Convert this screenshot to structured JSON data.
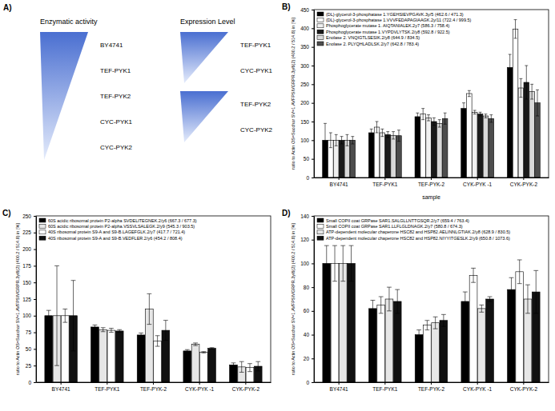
{
  "diagram": {
    "label": "A)",
    "columns": [
      {
        "title": "Enzymatic activity",
        "groups": [
          [
            "BY4741",
            "TEF-PYK1",
            "TEF-PYK2",
            "CYC-PYK1",
            "CYC-PYK2"
          ]
        ]
      },
      {
        "title": "Expression Level",
        "groups": [
          [
            "TEF-PYK1",
            "CYC-PYK1"
          ],
          [
            "TEF-PYK2",
            "CYC-PYK2"
          ]
        ]
      }
    ]
  },
  "chart_data": [
    {
      "type": "bar",
      "title": "B)",
      "x_label": "sample",
      "y_label": "ratio to Actin OS=Sacchar SV=1.AVFPSIVGRPR.3y/6(2) (400.2 / 514.8) in [%]",
      "categories": [
        "BY4741",
        "TEF-PYK1",
        "TEF-PYK-2",
        "CYK-PYK -1",
        "CYK-PYK-2"
      ],
      "series": [
        {
          "name": "(DL)-glycerol-3-phosphatase 1.YGEHSIEVPGAVK.3y/5 (462.6 / 471.3)",
          "color": "#000000",
          "values": [
            100,
            120,
            163,
            185,
            295
          ],
          "errors": [
            45,
            10,
            10,
            15,
            35
          ]
        },
        {
          "name": "(DL)-glycerol-3-phosphatase 1.VVVFEDAPAGIAAGK.2y/11 (722.4 / 999.5)",
          "color": "#ffffff",
          "values": [
            100,
            135,
            170,
            225,
            398
          ],
          "errors": [
            20,
            15,
            15,
            8,
            25
          ]
        },
        {
          "name": "Phosphoglycerate mutase 1. AIQTANIALEK.2y7 (586.3 / 758.4)",
          "color": "#f0f0f0",
          "values": [
            100,
            120,
            160,
            175,
            240
          ],
          "errors": [
            15,
            10,
            8,
            5,
            25
          ]
        },
        {
          "name": "Phosphoglycerate mutase 1.VYPDVLYTSK.2/y8 (592.8 / 922.5)",
          "color": "#1a1a1a",
          "values": [
            100,
            115,
            150,
            170,
            255
          ],
          "errors": [
            10,
            8,
            10,
            5,
            45
          ]
        },
        {
          "name": "Enolase 2. VNQIGTLSESIK.2/y8 (644.9 / 834.5)",
          "color": "#d9d9d9",
          "values": [
            100,
            113,
            145,
            165,
            230
          ],
          "errors": [
            15,
            10,
            10,
            5,
            20
          ]
        },
        {
          "name": "Enolase 2. PLYQHLADLSK.2/y7 (642.8 / 783.4)",
          "color": "#4d4d4d",
          "values": [
            100,
            112,
            158,
            158,
            200
          ],
          "errors": [
            10,
            15,
            15,
            10,
            35
          ]
        }
      ],
      "ylim": [
        0,
        450
      ],
      "yticks": [
        0,
        50,
        100,
        150,
        200,
        250,
        300,
        350,
        400,
        450
      ],
      "grid": false,
      "legend": "upper left"
    },
    {
      "type": "bar",
      "title": "C)",
      "y_label": "ratio to Actin OS=Sacchar SV=1.AVFPSIVGRPR.3y/6(2) (400.2 / 514.8) in [%]",
      "categories": [
        "BY4741",
        "TEF-PYK1",
        "TEF-PYK-2",
        "CYK-PYK -1",
        "CYK-PYK-2"
      ],
      "series": [
        {
          "name": "60S acidic ribosomal protein P2-alpha SVDELITEGNEK.2/y6 (667.3 / 677.3)",
          "color": "#000000",
          "values": [
            100,
            83,
            71,
            47,
            26
          ],
          "errors": [
            8,
            3,
            3,
            2,
            3
          ]
        },
        {
          "name": "60S acidic ribosomal protein P2-alpha.VSSVLSALEGK.2/y9 (545.3 / 903.5)",
          "color": "#e6e6e6",
          "values": [
            100,
            79,
            110,
            57,
            23
          ],
          "errors": [
            75,
            3,
            23,
            2,
            8
          ]
        },
        {
          "name": "40S ribosomal protein S9-A and S9-B.LAGEFGLK.2/y7 (417.7 / 721.4)",
          "color": "#ffffff",
          "values": [
            100,
            78,
            62,
            45,
            22
          ],
          "errors": [
            10,
            3,
            8,
            1,
            6
          ]
        },
        {
          "name": "40S ribosomal protein S9-A and S9-B.VEDFLER.2/y6 (454.2 / 808.4)",
          "color": "#111111",
          "values": [
            100,
            77,
            78,
            51,
            24
          ],
          "errors": [
            53,
            2,
            15,
            1,
            7
          ]
        }
      ],
      "ylim": [
        0,
        250
      ],
      "yticks": [
        0,
        25,
        50,
        75,
        100,
        125,
        150,
        175,
        200,
        225,
        250
      ],
      "grid": false,
      "legend": "upper left"
    },
    {
      "type": "bar",
      "title": "D)",
      "y_label": "ratio to Actin OS=Sacchar SV=1.AVFPSIVGRPR.3y/6(2) (400.2 / 514.8) in [%]",
      "categories": [
        "BY4741",
        "TEF-PYK1",
        "TEF-PYK-2",
        "CYK-PYK -1",
        "CYK-PYK-2"
      ],
      "series": [
        {
          "name": "Small COPII coat GRPase SAR1.SALGLLNTTGSQR.2/y7 (659.4 / 763.4)",
          "color": "#000000",
          "values": [
            100,
            62,
            40,
            68,
            78
          ],
          "errors": [
            15,
            7,
            4,
            8,
            10
          ]
        },
        {
          "name": "Small COPII coat GRPase SAR1.LLFLGLDNAGK.2/y7 (580.8 / 674.3)",
          "color": "#ffffff",
          "values": [
            100,
            65,
            48,
            90,
            93
          ],
          "errors": [
            15,
            7,
            4,
            6,
            10
          ]
        },
        {
          "name": "ATP-dependent molecular chaperone HSC82 and HSP82.AELINNLGTIAK.2/y8 (628.9 / 830.5)",
          "color": "#e6e6e6",
          "values": [
            100,
            70,
            50,
            62,
            70
          ],
          "errors": [
            15,
            10,
            5,
            3,
            12
          ]
        },
        {
          "name": "ATP-dependent molecular chaperone HSC82 and HSP82.NIYYITGESLK.2/y9 (650.8 / 1073.6)",
          "color": "#111111",
          "values": [
            100,
            68,
            52,
            70,
            76
          ],
          "errors": [
            15,
            10,
            5,
            2,
            18
          ]
        }
      ],
      "ylim": [
        0,
        140
      ],
      "yticks": [
        0,
        20,
        40,
        60,
        80,
        100,
        120,
        140
      ],
      "grid": false,
      "legend": "upper left"
    }
  ]
}
